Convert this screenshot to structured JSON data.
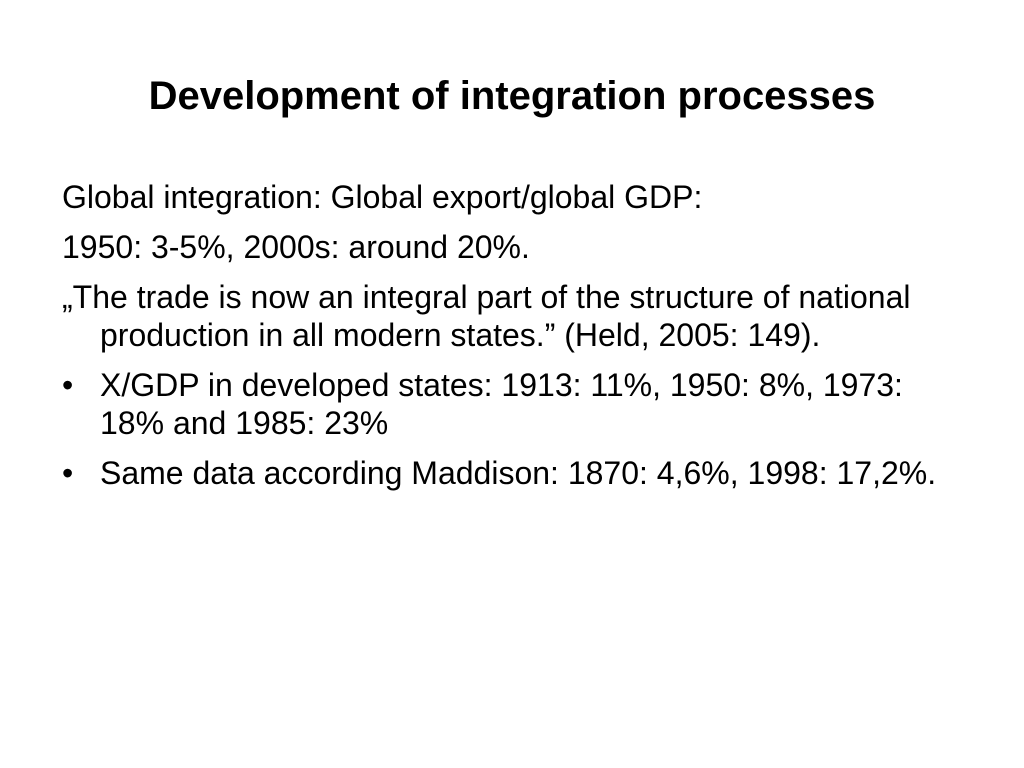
{
  "slide": {
    "title": "Development of integration processes",
    "paragraphs": [
      "Global integration: Global export/global GDP:",
      "1950: 3-5%, 2000s: around 20%.",
      "„The trade is now an integral part of the structure of national production in all modern states.” (Held, 2005: 149)."
    ],
    "bullet_symbol": "•",
    "bullets": [
      "X/GDP in developed states: 1913: 11%, 1950: 8%, 1973: 18% and 1985: 23%",
      "Same data according Maddison:  1870: 4,6%, 1998: 17,2%."
    ]
  }
}
